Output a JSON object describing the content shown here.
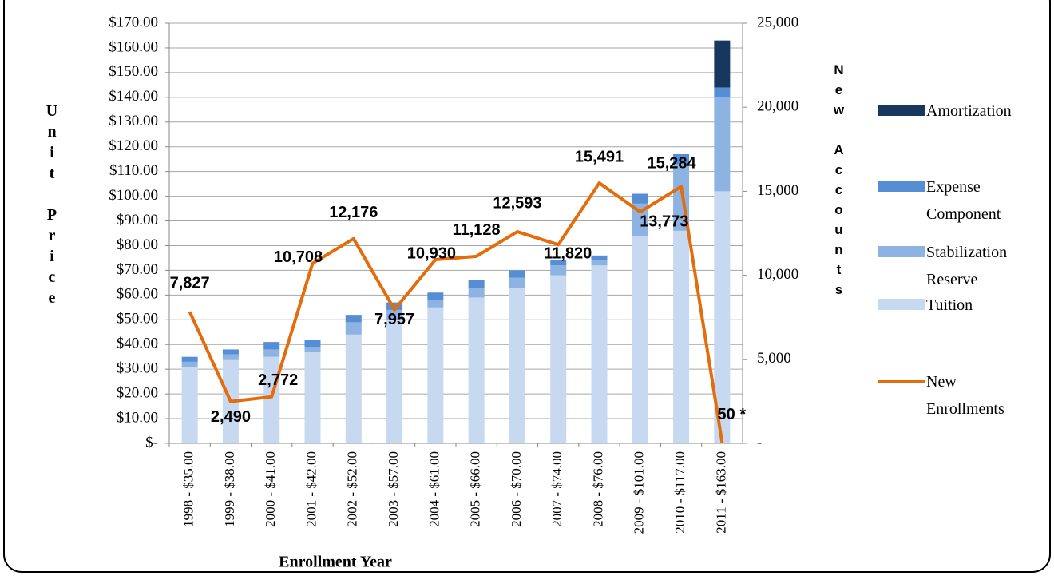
{
  "chart_data": {
    "type": "bar",
    "x_label": "Enrollment Year",
    "y_label": "Unit Price",
    "y2_label": "New Accounts",
    "categories": [
      "1998 - $35.00",
      "1999 - $38.00",
      "2000 - $41.00",
      "2001 - $42.00",
      "2002 - $52.00",
      "2003 - $57.00",
      "2004 - $61.00",
      "2005 - $66.00",
      "2006 - $70.00",
      "2007 - $74.00",
      "2008 - $76.00",
      "2009 - $101.00",
      "2010 - $117.00",
      "2011 - $163.00"
    ],
    "series": [
      {
        "name": "Tuition",
        "color": "#c6d9f1",
        "values": [
          31,
          34,
          35,
          37,
          44,
          50,
          55,
          59,
          63,
          68,
          72,
          84,
          86,
          102
        ]
      },
      {
        "name": "Stabilization Reserve",
        "color": "#8db3e2",
        "values": [
          2,
          2,
          3,
          2,
          5,
          4,
          3,
          4,
          4,
          4,
          2,
          13,
          27,
          38
        ]
      },
      {
        "name": "Expense Component",
        "color": "#558ed5",
        "values": [
          2,
          2,
          3,
          3,
          3,
          3,
          3,
          3,
          3,
          2,
          2,
          4,
          4,
          4
        ]
      },
      {
        "name": "Amortization",
        "color": "#17375e",
        "values": [
          0,
          0,
          0,
          0,
          0,
          0,
          0,
          0,
          0,
          0,
          0,
          0,
          0,
          19
        ]
      },
      {
        "name": "New Enrollments",
        "type": "line",
        "axis": "y2",
        "color": "#e46c0a",
        "values": [
          7827,
          2490,
          2772,
          10708,
          12176,
          7957,
          10930,
          11128,
          12593,
          11820,
          15491,
          13773,
          15284,
          50
        ],
        "value_labels": [
          "7,827",
          "2,490",
          "2,772",
          "10,708",
          "12,176",
          "7,957",
          "10,930",
          "11,128",
          "12,593",
          "11,820",
          "15,491",
          "13,773",
          "15,284",
          "50 *"
        ]
      }
    ],
    "ylim": [
      0,
      170
    ],
    "yticks": [
      {
        "value": 0,
        "label": "$-"
      },
      {
        "value": 10,
        "label": "$10.00"
      },
      {
        "value": 20,
        "label": "$20.00"
      },
      {
        "value": 30,
        "label": "$30.00"
      },
      {
        "value": 40,
        "label": "$40.00"
      },
      {
        "value": 50,
        "label": "$50.00"
      },
      {
        "value": 60,
        "label": "$60.00"
      },
      {
        "value": 70,
        "label": "$70.00"
      },
      {
        "value": 80,
        "label": "$80.00"
      },
      {
        "value": 90,
        "label": "$90.00"
      },
      {
        "value": 100,
        "label": "$100.00"
      },
      {
        "value": 110,
        "label": "$110.00"
      },
      {
        "value": 120,
        "label": "$120.00"
      },
      {
        "value": 130,
        "label": "$130.00"
      },
      {
        "value": 140,
        "label": "$140.00"
      },
      {
        "value": 150,
        "label": "$150.00"
      },
      {
        "value": 160,
        "label": "$160.00"
      },
      {
        "value": 170,
        "label": "$170.00"
      }
    ],
    "y2lim": [
      0,
      25000
    ],
    "y2ticks": [
      {
        "value": 0,
        "label": "-"
      },
      {
        "value": 5000,
        "label": "5,000"
      },
      {
        "value": 10000,
        "label": "10,000"
      },
      {
        "value": 15000,
        "label": "15,000"
      },
      {
        "value": 20000,
        "label": "20,000"
      },
      {
        "value": 25000,
        "label": "25,000"
      }
    ],
    "grid": true
  }
}
